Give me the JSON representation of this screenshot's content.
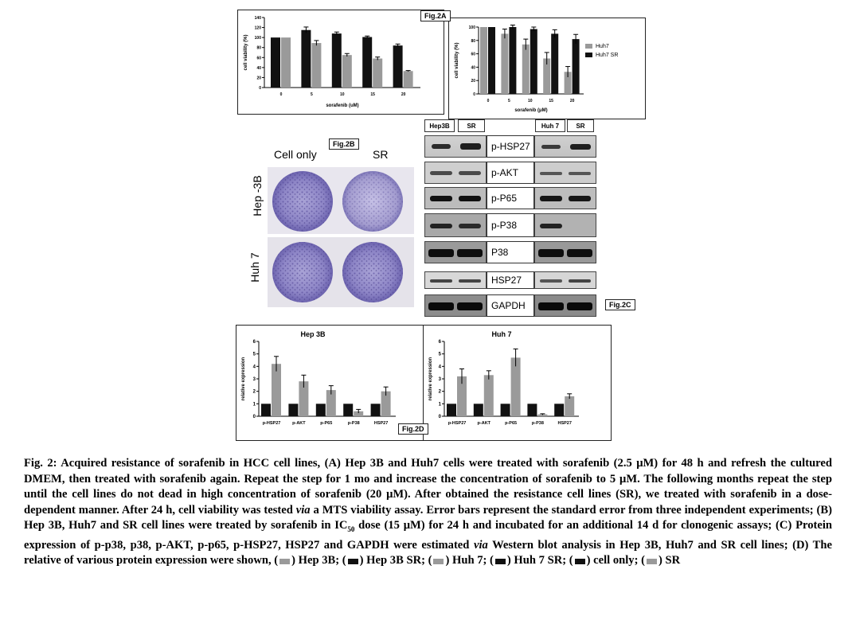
{
  "figure": {
    "panel_a_tag": "Fig.2A",
    "panel_b_tag": "Fig.2B",
    "panel_c_tag": "Fig.2C",
    "panel_d_tag": "Fig.2D",
    "colors": {
      "black": "#111111",
      "gray": "#9a9a9a",
      "light": "#b8b8b8"
    }
  },
  "panel_b": {
    "cell_only": "Cell only",
    "sr": "SR",
    "row1": "Hep -3B",
    "row2": "Huh 7"
  },
  "panel_c": {
    "left_headers": [
      "Hep3B",
      "SR"
    ],
    "right_headers": [
      "Huh 7",
      "SR"
    ],
    "markers": [
      "p-HSP27",
      "p-AKT",
      "p-P65",
      "p-P38",
      "P38",
      "HSP27",
      "GAPDH"
    ]
  },
  "chart_data": [
    {
      "type": "bar",
      "panel": "A-left",
      "xlabel": "sorafenib (uM)",
      "ylabel": "cell viability (%)",
      "categories": [
        "0",
        "5",
        "10",
        "15",
        "20"
      ],
      "ylim": [
        0,
        140
      ],
      "yticks": [
        0,
        20,
        40,
        60,
        80,
        100,
        120,
        140
      ],
      "series": [
        {
          "values": [
            100,
            115,
            108,
            101,
            84
          ],
          "errors": [
            0,
            6,
            3,
            2,
            3
          ],
          "color": "#111111"
        },
        {
          "values": [
            100,
            89,
            65,
            58,
            33
          ],
          "errors": [
            0,
            5,
            3,
            3,
            1
          ],
          "color": "#9a9a9a"
        }
      ]
    },
    {
      "type": "bar",
      "panel": "A-right",
      "xlabel": "sorafenib (μM)",
      "ylabel": "cell viability (%)",
      "categories": [
        "0",
        "5",
        "10",
        "15",
        "20"
      ],
      "ylim": [
        0,
        100
      ],
      "yticks": [
        0,
        20,
        40,
        60,
        80,
        100
      ],
      "legend": "right",
      "series": [
        {
          "name": "Huh7",
          "values": [
            100,
            90,
            74,
            53,
            33
          ],
          "errors": [
            0,
            7,
            8,
            9,
            8
          ],
          "color": "#9a9a9a"
        },
        {
          "name": "Huh7 SR",
          "values": [
            100,
            100,
            97,
            90,
            82
          ],
          "errors": [
            0,
            3,
            3,
            6,
            7
          ],
          "color": "#111111"
        }
      ]
    },
    {
      "type": "bar",
      "panel": "D-left",
      "title": "Hep 3B",
      "ylabel": "relative expression",
      "categories": [
        "p-HSP27",
        "p-AKT",
        "p-P65",
        "p-P38",
        "HSP27"
      ],
      "ylim": [
        0,
        6
      ],
      "yticks": [
        0,
        1,
        2,
        3,
        4,
        5,
        6
      ],
      "series": [
        {
          "values": [
            1,
            1,
            1,
            1,
            1
          ],
          "errors": [
            0,
            0,
            0,
            0,
            0
          ],
          "color": "#111111"
        },
        {
          "values": [
            4.2,
            2.8,
            2.1,
            0.4,
            2.0
          ],
          "errors": [
            0.6,
            0.5,
            0.35,
            0.15,
            0.35
          ],
          "color": "#9a9a9a"
        }
      ]
    },
    {
      "type": "bar",
      "panel": "D-right",
      "title": "Huh 7",
      "ylabel": "relative expression",
      "categories": [
        "p-HSP27",
        "p-AKT",
        "p-P65",
        "p-P38",
        "HSP27"
      ],
      "ylim": [
        0,
        6
      ],
      "yticks": [
        0,
        1,
        2,
        3,
        4,
        5,
        6
      ],
      "series": [
        {
          "values": [
            1,
            1,
            1,
            1,
            1
          ],
          "errors": [
            0,
            0,
            0,
            0,
            0
          ],
          "color": "#111111"
        },
        {
          "values": [
            3.2,
            3.3,
            4.7,
            0.15,
            1.6
          ],
          "errors": [
            0.6,
            0.35,
            0.7,
            0.05,
            0.2
          ],
          "color": "#9a9a9a"
        }
      ]
    }
  ],
  "caption": {
    "lead": "Fig. 2: Acquired resistance of sorafenib in HCC cell lines, (A) Hep 3B and Huh7 cells were treated with sorafenib (2.5 μM) for 48 h and refresh the cultured DMEM, then treated with sorafenib again. Repeat the step for 1 mo and increase the concentration of sorafenib to 5 μM. The following months repeat the step until the cell lines do not dead in high concentration of sorafenib (20 μM). After obtained the resistance cell lines (SR), we treated with sorafenib in a dose-dependent manner. After 24 h, cell viability was tested ",
    "via1": "via",
    "mid1": " a MTS viability assay. Error bars represent the standard error from three independent experiments; (B) Hep 3B, Huh7 and SR cell lines were treated by sorafenib in IC",
    "sub": "50",
    "mid2": " dose (15 μM) for 24 h and incubated for an additional 14 d for clonogenic assays; (C) Protein expression of p-p38, p38, p-AKT, p-p65, p-HSP27, HSP27 and GAPDH were estimated ",
    "via2": "via",
    "mid3": " Western blot analysis in Hep 3B, Huh7 and SR cell lines; (D) The relative of various protein expression were shown, (",
    "l1": ") Hep 3B; (",
    "l2": ") Hep 3B SR; (",
    "l3": ") Huh 7; (",
    "l4": ") Huh 7 SR; (",
    "l5": ") cell only; (",
    "l6": ") SR"
  }
}
